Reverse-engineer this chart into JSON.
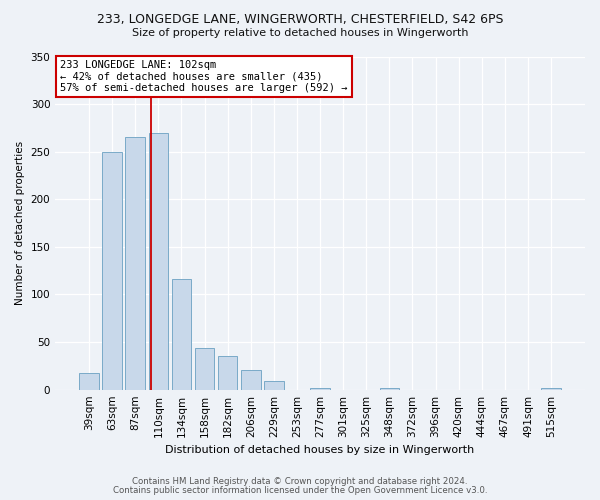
{
  "title": "233, LONGEDGE LANE, WINGERWORTH, CHESTERFIELD, S42 6PS",
  "subtitle": "Size of property relative to detached houses in Wingerworth",
  "xlabel": "Distribution of detached houses by size in Wingerworth",
  "ylabel": "Number of detached properties",
  "bar_color": "#c8d8ea",
  "bar_edge_color": "#7aaac8",
  "categories": [
    "39sqm",
    "63sqm",
    "87sqm",
    "110sqm",
    "134sqm",
    "158sqm",
    "182sqm",
    "206sqm",
    "229sqm",
    "253sqm",
    "277sqm",
    "301sqm",
    "325sqm",
    "348sqm",
    "372sqm",
    "396sqm",
    "420sqm",
    "444sqm",
    "467sqm",
    "491sqm",
    "515sqm"
  ],
  "values": [
    18,
    250,
    265,
    270,
    116,
    44,
    35,
    21,
    9,
    0,
    2,
    0,
    0,
    2,
    0,
    0,
    0,
    0,
    0,
    0,
    2
  ],
  "ylim": [
    0,
    350
  ],
  "yticks": [
    0,
    50,
    100,
    150,
    200,
    250,
    300,
    350
  ],
  "vline_x": 2.67,
  "vline_color": "#cc0000",
  "annotation_title": "233 LONGEDGE LANE: 102sqm",
  "annotation_line2": "← 42% of detached houses are smaller (435)",
  "annotation_line3": "57% of semi-detached houses are larger (592) →",
  "annotation_box_color": "#ffffff",
  "annotation_border_color": "#cc0000",
  "footer1": "Contains HM Land Registry data © Crown copyright and database right 2024.",
  "footer2": "Contains public sector information licensed under the Open Government Licence v3.0.",
  "background_color": "#eef2f7",
  "plot_background": "#eef2f7"
}
